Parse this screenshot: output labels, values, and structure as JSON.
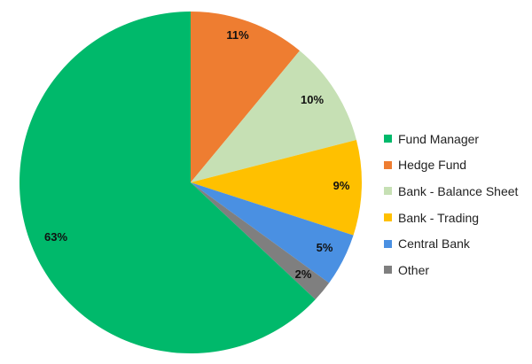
{
  "chart_data": {
    "type": "pie",
    "start": "12 o'clock",
    "direction": "clockwise",
    "slices": [
      {
        "name": "Hedge Fund",
        "value": 11,
        "label": "11%",
        "color": "#ee7d31"
      },
      {
        "name": "Bank - Balance Sheet",
        "value": 10,
        "label": "10%",
        "color": "#c6e0b4"
      },
      {
        "name": "Bank - Trading",
        "value": 9,
        "label": "9%",
        "color": "#ffc000"
      },
      {
        "name": "Central Bank",
        "value": 5,
        "label": "5%",
        "color": "#4a90e2"
      },
      {
        "name": "Other",
        "value": 2,
        "label": "2%",
        "color": "#7f7f7f"
      },
      {
        "name": "Fund Manager",
        "value": 63,
        "label": "63%",
        "color": "#00b96b"
      }
    ],
    "legend": {
      "position": "right",
      "entries": [
        {
          "label": "Fund Manager",
          "color": "#00b96b"
        },
        {
          "label": "Hedge Fund",
          "color": "#ee7d31"
        },
        {
          "label": "Bank - Balance Sheet",
          "color": "#c6e0b4"
        },
        {
          "label": "Bank - Trading",
          "color": "#ffc000"
        },
        {
          "label": "Central Bank",
          "color": "#4a90e2"
        },
        {
          "label": "Other",
          "color": "#7f7f7f"
        }
      ]
    }
  }
}
